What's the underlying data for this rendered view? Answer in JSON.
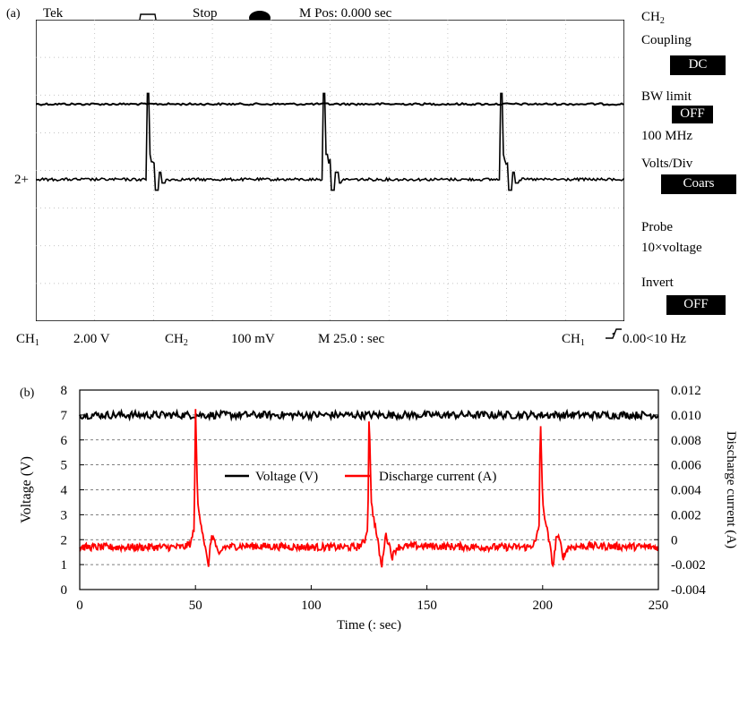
{
  "panel_a": {
    "label": "(a)",
    "header": {
      "brand": "Tek",
      "mode": "Stop",
      "position": "M Pos: 0.000 sec"
    },
    "ch2_marker": "2+",
    "side_menu": {
      "channel": "CH",
      "channel_sub": "2",
      "coupling_label": "Coupling",
      "coupling_value": "DC",
      "bw_label": "BW limit",
      "bw_value": "OFF",
      "bw_freq": "100 MHz",
      "volts_label": "Volts/Div",
      "volts_value": "Coars",
      "probe_label": "Probe",
      "probe_value": "10×voltage",
      "invert_label": "Invert",
      "invert_value": "OFF"
    },
    "status_bar": {
      "ch1": "CH",
      "ch1_sub": "1",
      "ch1_scale": "2.00 V",
      "ch2": "CH",
      "ch2_sub": "2",
      "ch2_scale": "100 mV",
      "timebase": "M 25.0 : sec",
      "trig_ch": "CH",
      "trig_ch_sub": "1",
      "trig_value": "0.00<10 Hz"
    },
    "scope_trace": {
      "v1_level": 0.28,
      "v2_level": 0.53,
      "spike_fractions": [
        0.19,
        0.49,
        0.79
      ],
      "colors": {
        "screen": "#ffffff",
        "grid": "#b0b0b0",
        "trace": "#000000"
      }
    }
  },
  "chart_data": {
    "type": "line",
    "panel_label": "(b)",
    "xlabel": "Time (: sec)",
    "ylabel": "Voltage (V)",
    "y2label": "Discharge current (A)",
    "xlim": [
      0,
      250
    ],
    "ylim": [
      0,
      8
    ],
    "y2lim": [
      -0.004,
      0.012
    ],
    "xticks": [
      0,
      50,
      100,
      150,
      200,
      250
    ],
    "yticks": [
      0,
      1,
      2,
      3,
      4,
      5,
      6,
      7,
      8
    ],
    "y2ticks": [
      -0.004,
      -0.002,
      0,
      0.002,
      0.004,
      0.006,
      0.008,
      0.01,
      0.012
    ],
    "y2ticklabels": [
      "-0.004",
      "-0.002",
      "0",
      "0.002",
      "0.004",
      "0.006",
      "0.008",
      "0.010",
      "0.012"
    ],
    "grid": "horizontal dashed",
    "legend": {
      "placement": "upper-center"
    },
    "series": [
      {
        "name": "Voltage (V)",
        "color": "#000000",
        "axis": "left",
        "x": [
          0,
          25,
          50,
          75,
          100,
          125,
          150,
          175,
          200,
          225,
          250
        ],
        "values": [
          7.0,
          7.0,
          7.0,
          7.0,
          7.0,
          7.0,
          7.0,
          7.0,
          7.0,
          7.0,
          7.0
        ]
      },
      {
        "name": "Discharge current (A)",
        "color": "#ff0000",
        "axis": "right",
        "x": [
          0,
          45,
          48,
          49.5,
          50,
          51,
          52,
          54,
          55.5,
          57,
          58.5,
          60,
          62,
          70,
          100,
          120,
          123,
          124.5,
          125,
          126,
          127,
          129,
          130.5,
          132,
          133.5,
          135,
          137,
          145,
          175,
          194,
          197,
          198.5,
          199,
          200,
          201,
          203,
          204.5,
          206,
          207.5,
          209,
          211,
          220,
          250
        ],
        "values": [
          -0.0006,
          -0.0006,
          -0.0003,
          0.001,
          0.0106,
          0.0028,
          0.0018,
          -0.0004,
          -0.0022,
          0.0004,
          -0.0002,
          -0.0014,
          -0.0006,
          -0.0005,
          -0.0006,
          -0.0006,
          -0.0002,
          0.0012,
          0.0106,
          0.0028,
          0.0018,
          -0.0004,
          -0.0023,
          0.0004,
          -0.0002,
          -0.0014,
          -0.0006,
          -0.0005,
          -0.0006,
          -0.0006,
          -0.0002,
          0.0012,
          0.0104,
          0.0028,
          0.0018,
          -0.0004,
          -0.0022,
          0.0004,
          -0.0002,
          -0.0014,
          -0.0006,
          -0.0005,
          -0.0006
        ]
      }
    ]
  }
}
